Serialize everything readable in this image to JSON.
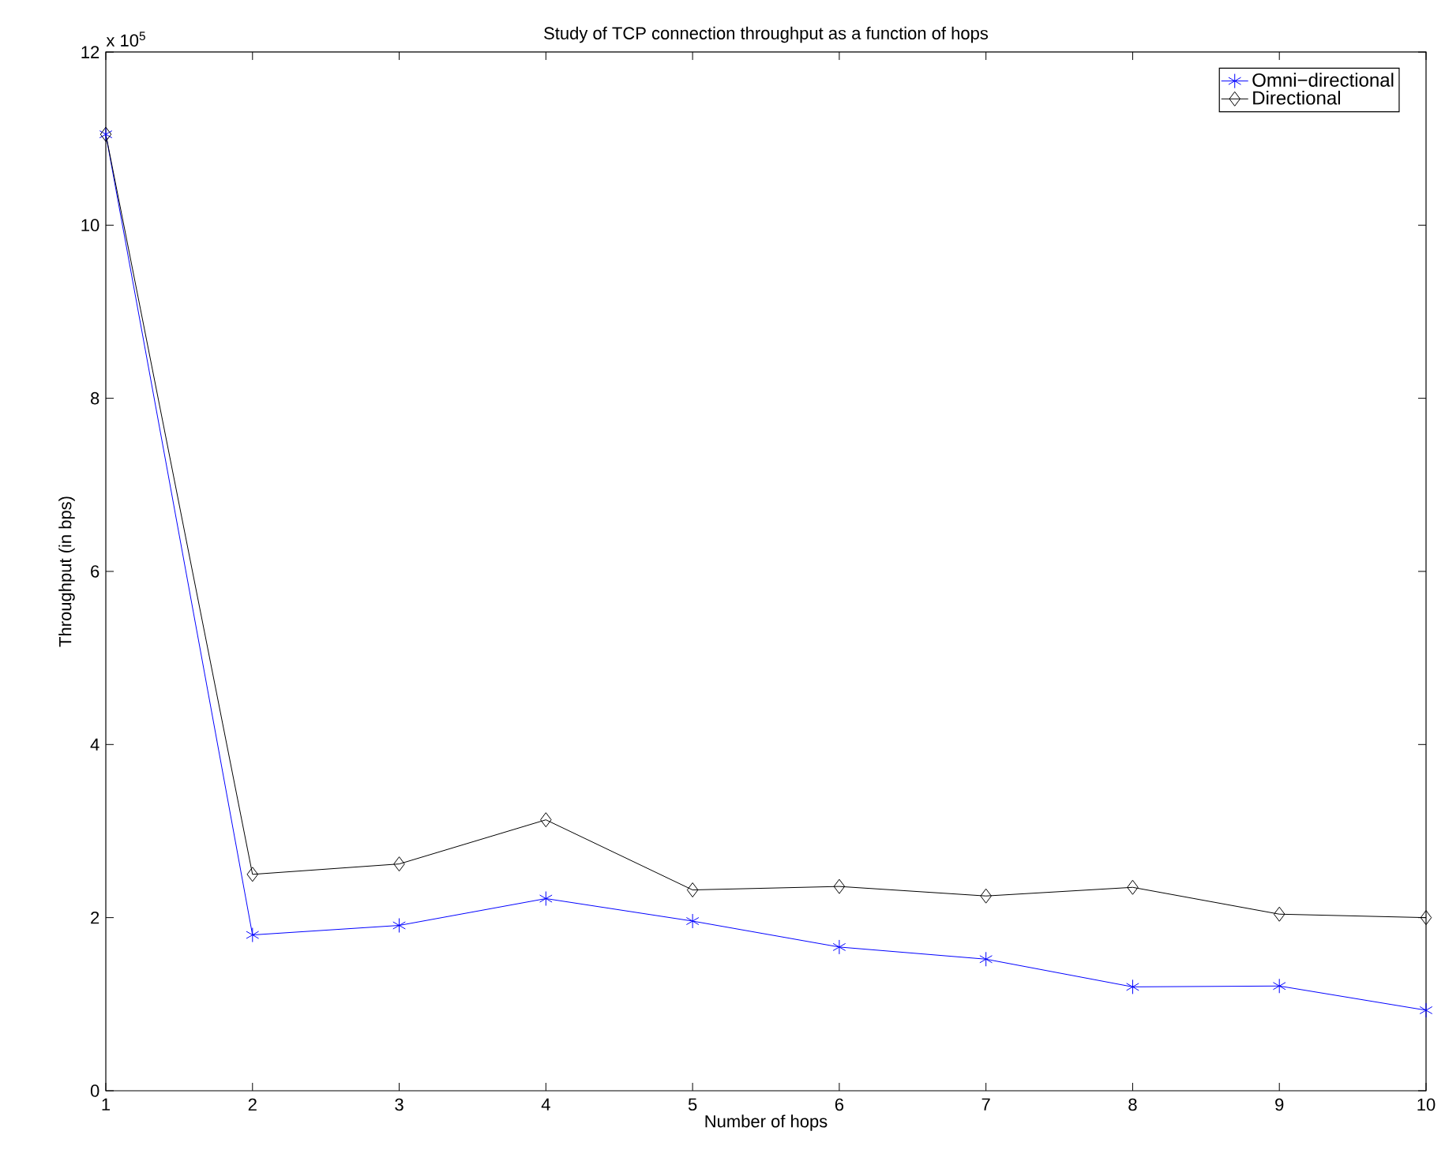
{
  "chart_data": {
    "type": "line",
    "title": "Study of TCP connection throughput as a function of hops",
    "xlabel": "Number of hops",
    "ylabel": "Throughput (in bps)",
    "annotations": [
      "x 10$^{5}$"
    ],
    "x": [
      1,
      2,
      3,
      4,
      5,
      6,
      7,
      8,
      9,
      10
    ],
    "series": [
      {
        "name": "Omni−directional",
        "color": "#0000ff",
        "marker": "cross",
        "values": [
          11.05,
          1.8,
          1.91,
          2.22,
          1.96,
          1.66,
          1.52,
          1.2,
          1.21,
          0.93
        ]
      },
      {
        "name": "Directional",
        "color": "#000000",
        "marker": "diamond",
        "values": [
          11.05,
          2.5,
          2.62,
          3.13,
          2.32,
          2.36,
          2.25,
          2.35,
          2.04,
          2.0
        ]
      }
    ],
    "xlim": [
      1,
      10
    ],
    "ylim": [
      0,
      12
    ],
    "xticks": [
      1,
      2,
      3,
      4,
      5,
      6,
      7,
      8,
      9,
      10
    ],
    "yticks": [
      0,
      2,
      4,
      6,
      8,
      10,
      12
    ],
    "grid": false,
    "legend": "top right",
    "line_style": "solid"
  }
}
